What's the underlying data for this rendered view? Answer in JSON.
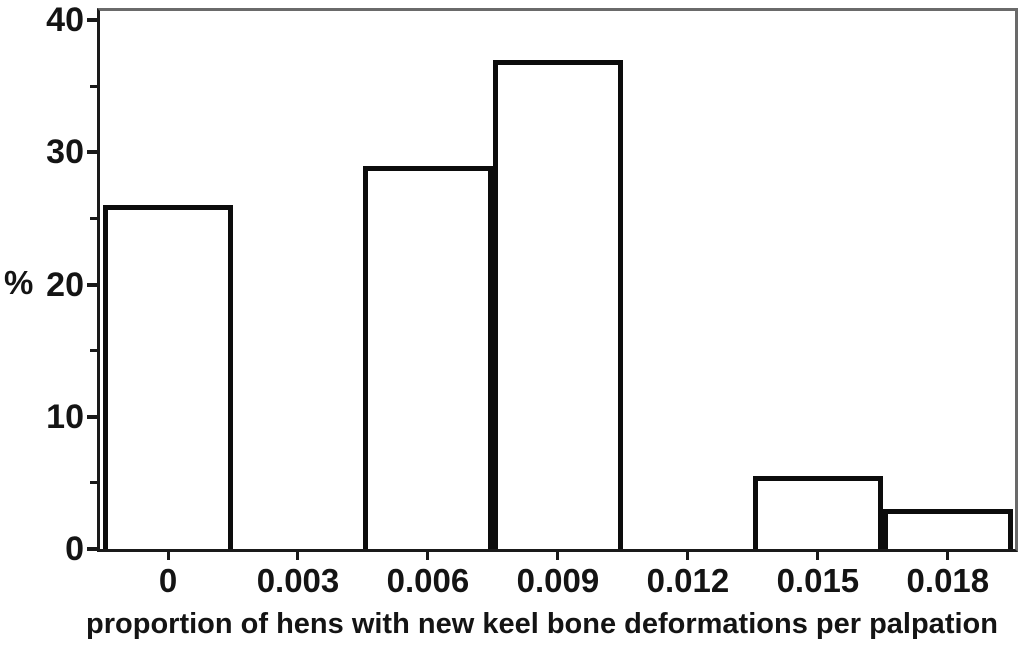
{
  "chart_data": {
    "type": "bar",
    "subtype": "histogram",
    "title": "",
    "xlabel": "proportion of hens with new keel bone deformations per palpation",
    "ylabel": "%",
    "bin_width": 0.003,
    "bars": [
      {
        "x": 0,
        "value": 26
      },
      {
        "x": 0.006,
        "value": 29
      },
      {
        "x": 0.009,
        "value": 37
      },
      {
        "x": 0.015,
        "value": 5.5
      },
      {
        "x": 0.018,
        "value": 3
      }
    ],
    "x_ticks": [
      {
        "value": 0,
        "label": "0"
      },
      {
        "value": 0.003,
        "label": "0.003"
      },
      {
        "value": 0.006,
        "label": "0.006"
      },
      {
        "value": 0.009,
        "label": "0.009"
      },
      {
        "value": 0.012,
        "label": "0.012"
      },
      {
        "value": 0.015,
        "label": "0.015"
      },
      {
        "value": 0.018,
        "label": "0.018"
      }
    ],
    "y_ticks_major": [
      {
        "value": 0,
        "label": "0"
      },
      {
        "value": 10,
        "label": "10"
      },
      {
        "value": 20,
        "label": "20"
      },
      {
        "value": 30,
        "label": "30"
      },
      {
        "value": 40,
        "label": "40"
      }
    ],
    "y_ticks_minor": [
      5,
      15,
      25,
      35
    ],
    "xlim": [
      -0.00157,
      0.01955
    ],
    "ylim": [
      0,
      40.7
    ],
    "grid": false,
    "legend": null,
    "colors": {
      "bar_fill": "#ffffff",
      "bar_border": "#0c0c0c",
      "axis": "#1a1a1a",
      "frame": "#6a6a6a",
      "text": "#141414"
    }
  }
}
